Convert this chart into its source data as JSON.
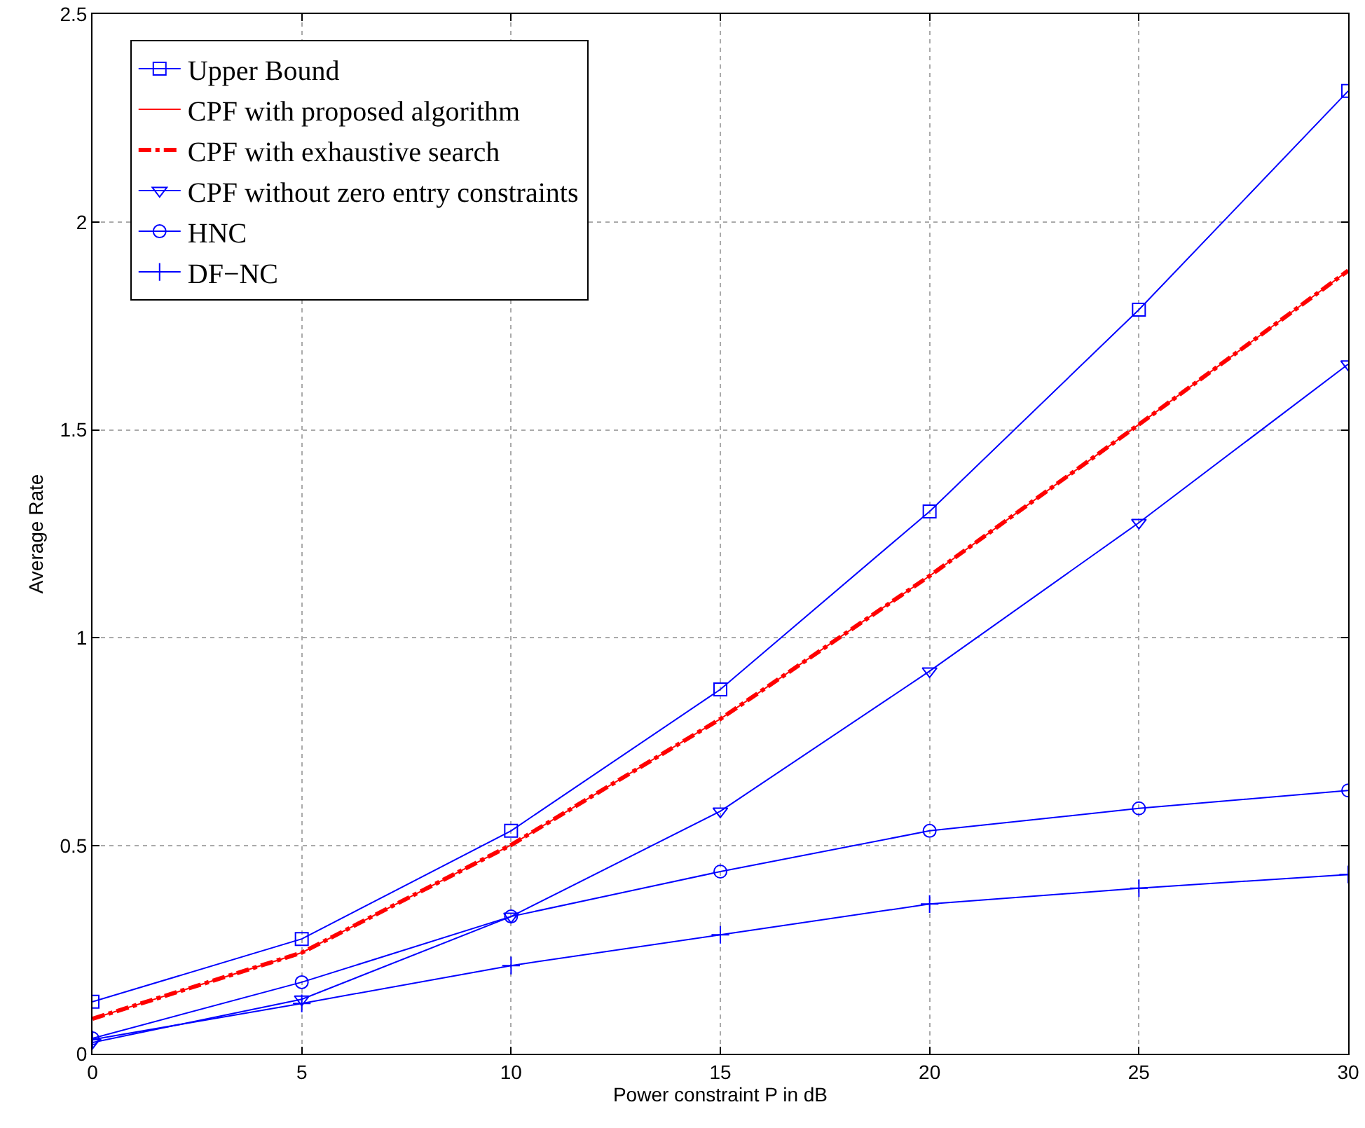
{
  "chart_data": {
    "type": "line",
    "xlabel": "Power constraint P in dB",
    "ylabel": "Average Rate",
    "x": [
      0,
      5,
      10,
      15,
      20,
      25,
      30
    ],
    "series": [
      {
        "name": "Upper Bound",
        "color": "#0000ff",
        "marker": "square",
        "line_style": "solid",
        "values": [
          0.125,
          0.276,
          0.536,
          0.876,
          1.304,
          1.789,
          2.315
        ]
      },
      {
        "name": "CPF with proposed algorithm",
        "color": "#ff0000",
        "marker": "none",
        "line_style": "solid",
        "values": [
          0.084,
          0.243,
          0.502,
          0.805,
          1.149,
          1.513,
          1.883
        ]
      },
      {
        "name": "CPF with exhaustive search",
        "color": "#ff0000",
        "marker": "none",
        "line_style": "dashed",
        "values": [
          0.084,
          0.243,
          0.502,
          0.805,
          1.149,
          1.513,
          1.883
        ]
      },
      {
        "name": "CPF without zero entry constraints",
        "color": "#0000ff",
        "marker": "triangle",
        "line_style": "solid",
        "values": [
          0.027,
          0.131,
          0.33,
          0.583,
          0.92,
          1.277,
          1.658
        ]
      },
      {
        "name": "HNC",
        "color": "#0000ff",
        "marker": "circle",
        "line_style": "solid",
        "values": [
          0.037,
          0.172,
          0.33,
          0.438,
          0.536,
          0.59,
          0.633
        ]
      },
      {
        "name": "DF−NC",
        "color": "#0000ff",
        "marker": "cross",
        "line_style": "solid",
        "values": [
          0.034,
          0.121,
          0.212,
          0.286,
          0.36,
          0.398,
          0.431
        ]
      }
    ],
    "xlim": [
      0,
      30
    ],
    "xticks": [
      0,
      5,
      10,
      15,
      20,
      25,
      30
    ],
    "ylim": [
      0,
      2.5
    ],
    "yticks": [
      0,
      0.5,
      1,
      1.5,
      2,
      2.5
    ],
    "grid": true,
    "legend": "top left"
  }
}
